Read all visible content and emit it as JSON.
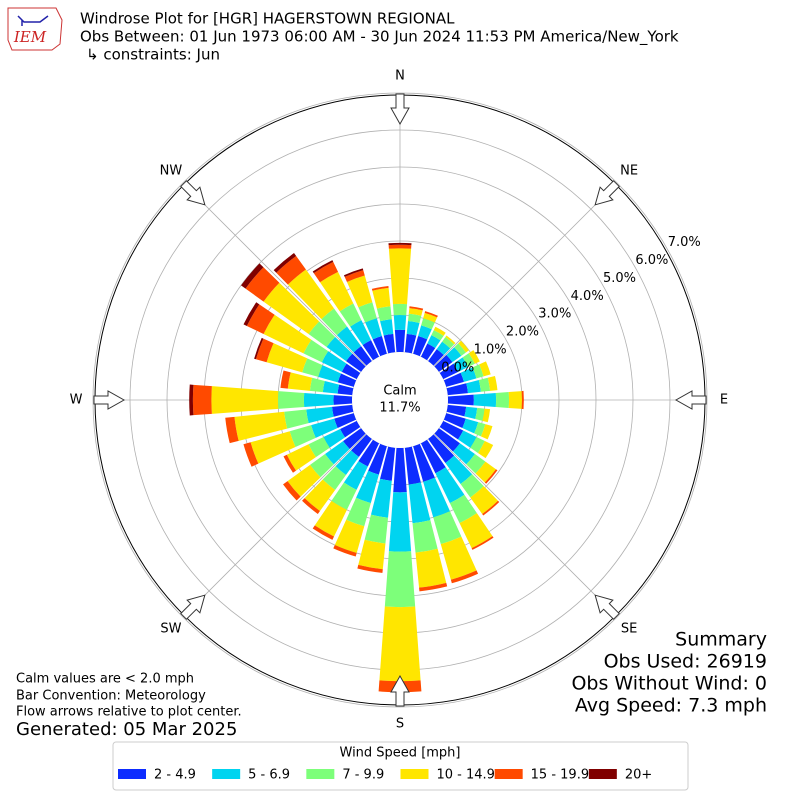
{
  "logo_text": "IEM",
  "chart_data": {
    "type": "windrose",
    "title": "Windrose Plot for [HGR] HAGERSTOWN REGIONAL",
    "subtitle": "Obs Between: 01 Jun 1973 06:00 AM - 30 Jun 2024 11:53 PM America/New_York",
    "constraints": "↳ constraints: Jun",
    "compass_labels": [
      "N",
      "NE",
      "E",
      "SE",
      "S",
      "SW",
      "W",
      "NW"
    ],
    "rlim": [
      0,
      7
    ],
    "rticks": [
      {
        "value": 0,
        "label": "0.0%"
      },
      {
        "value": 1,
        "label": "1.0%"
      },
      {
        "value": 2,
        "label": "2.0%"
      },
      {
        "value": 3,
        "label": "3.0%"
      },
      {
        "value": 4,
        "label": "4.0%"
      },
      {
        "value": 5,
        "label": "5.0%"
      },
      {
        "value": 6,
        "label": "6.0%"
      },
      {
        "value": 7,
        "label": "7.0%"
      }
    ],
    "calm_label": "Calm",
    "calm_value": {
      "value": 11.7,
      "label": "11.7%"
    },
    "legend_title": "Wind Speed [mph]",
    "series": [
      {
        "name": "2 - 4.9",
        "color": "#0d2cff",
        "values": [
          0.6,
          0.5,
          0.5,
          0.4,
          0.4,
          0.45,
          0.45,
          0.5,
          0.55,
          0.7,
          0.5,
          0.55,
          0.6,
          0.7,
          0.8,
          0.9,
          1.0,
          1.0,
          1.2,
          0.9,
          0.8,
          0.7,
          0.6,
          0.6,
          0.5,
          0.55,
          0.55,
          0.5,
          0.4,
          0.45,
          0.45,
          0.5,
          0.5,
          0.5,
          0.5,
          0.5
        ]
      },
      {
        "name": "5 - 6.9",
        "color": "#00d4f0",
        "values": [
          0.4,
          0.35,
          0.3,
          0.25,
          0.25,
          0.3,
          0.3,
          0.35,
          0.35,
          0.6,
          0.3,
          0.35,
          0.4,
          0.5,
          0.7,
          0.9,
          1.0,
          1.05,
          1.6,
          1.0,
          0.8,
          0.7,
          0.6,
          0.6,
          0.5,
          0.65,
          0.7,
          0.8,
          0.4,
          0.55,
          0.6,
          0.65,
          0.65,
          0.6,
          0.5,
          0.4
        ]
      },
      {
        "name": "7 - 9.9",
        "color": "#7dff7a",
        "values": [
          0.3,
          0.2,
          0.2,
          0.15,
          0.15,
          0.15,
          0.2,
          0.2,
          0.25,
          0.35,
          0.2,
          0.2,
          0.25,
          0.35,
          0.45,
          0.6,
          0.75,
          0.8,
          1.5,
          0.7,
          0.65,
          0.6,
          0.5,
          0.5,
          0.45,
          0.6,
          0.6,
          0.7,
          0.35,
          0.45,
          0.55,
          0.6,
          0.6,
          0.5,
          0.45,
          0.35
        ]
      },
      {
        "name": "10 - 14.9",
        "color": "#ffe600",
        "values": [
          1.5,
          0.15,
          0.15,
          0.1,
          0.05,
          0.1,
          0.15,
          0.2,
          0.2,
          0.35,
          0.15,
          0.2,
          0.25,
          0.35,
          0.55,
          0.75,
          1.0,
          0.95,
          2.0,
          0.7,
          0.75,
          0.8,
          0.7,
          0.75,
          0.65,
          1.1,
          1.35,
          1.8,
          0.6,
          1.0,
          1.2,
          1.5,
          1.3,
          0.95,
          0.75,
          0.5
        ]
      },
      {
        "name": "15 - 19.9",
        "color": "#ff4a00",
        "values": [
          0.1,
          0.05,
          0.05,
          0,
          0,
          0,
          0,
          0,
          0,
          0.05,
          0,
          0,
          0,
          0.05,
          0.05,
          0.05,
          0.1,
          0.1,
          0.3,
          0.1,
          0.1,
          0.1,
          0.1,
          0.15,
          0.1,
          0.2,
          0.25,
          0.5,
          0.2,
          0.3,
          0.5,
          0.6,
          0.45,
          0.3,
          0.15,
          0.05
        ]
      },
      {
        "name": "20+",
        "color": "#800000",
        "values": [
          0.05,
          0,
          0,
          0,
          0,
          0,
          0,
          0,
          0,
          0,
          0,
          0,
          0,
          0,
          0,
          0,
          0,
          0,
          0,
          0,
          0,
          0,
          0,
          0,
          0,
          0,
          0,
          0.1,
          0,
          0.05,
          0.1,
          0.15,
          0.1,
          0.05,
          0.05,
          0
        ]
      }
    ],
    "notes": [
      "Calm values are < 2.0 mph",
      "Bar Convention: Meteorology",
      "Flow arrows relative to plot center."
    ],
    "generated": "Generated: 05 Mar 2025",
    "summary": [
      "Summary",
      "Obs Used: 26919",
      "Obs Without Wind: 0",
      "Avg Speed: 7.3 mph"
    ]
  }
}
